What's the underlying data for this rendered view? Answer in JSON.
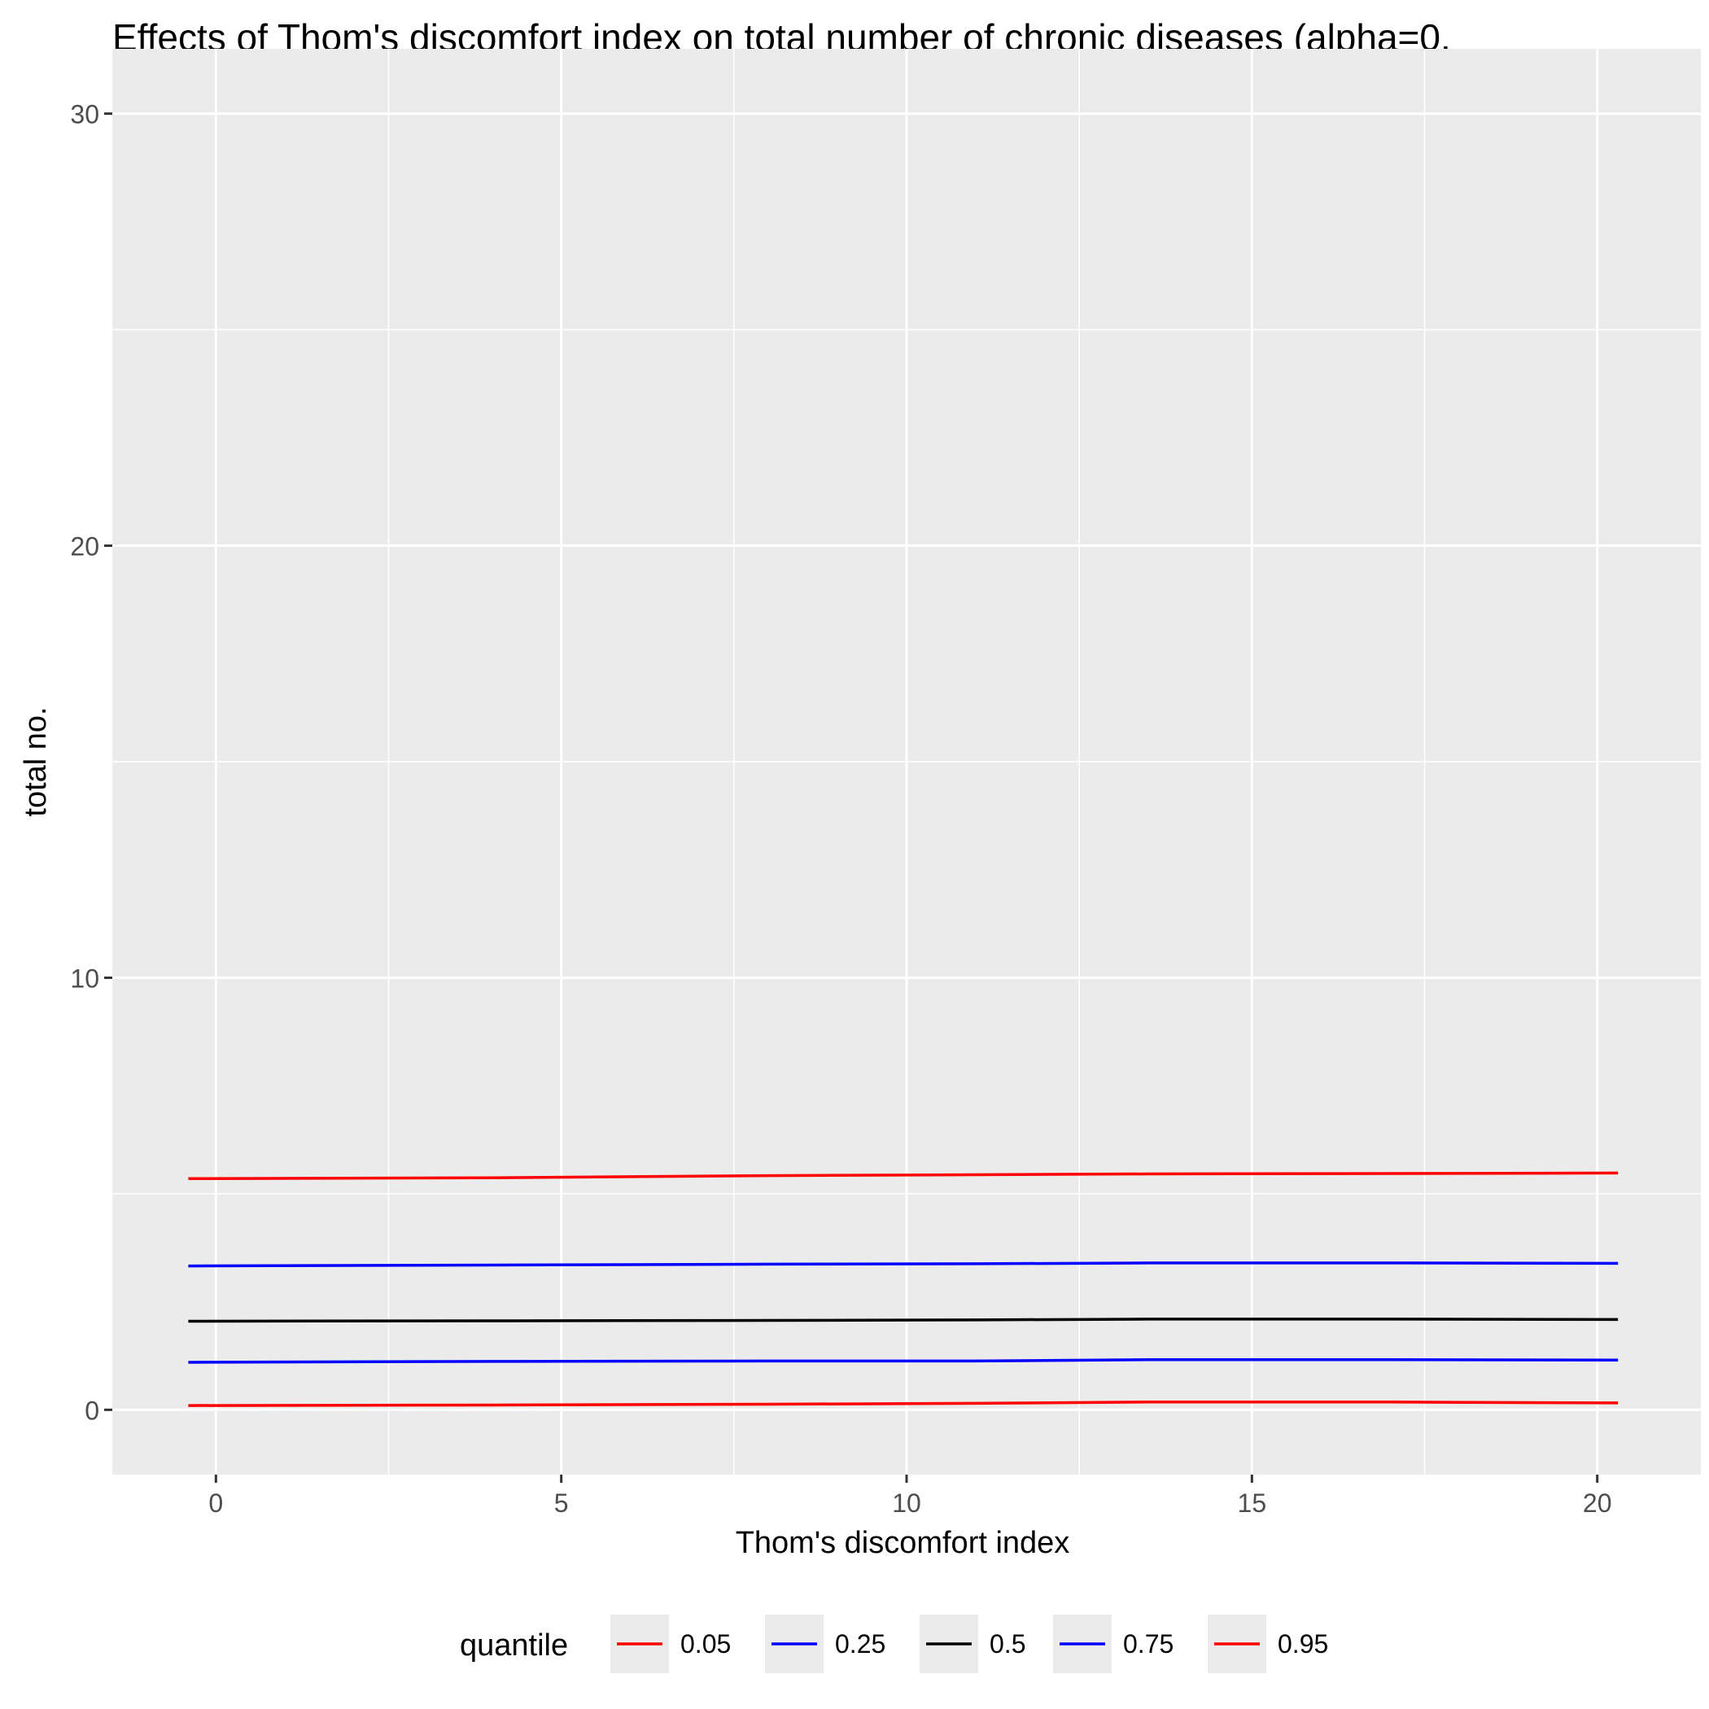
{
  "chart_data": {
    "type": "line",
    "title": "Effects of Thom's discomfort index on total number of chronic diseases (alpha=0.",
    "xlabel": "Thom's discomfort index",
    "ylabel": "total no.",
    "xlim": [
      -1.5,
      21.5
    ],
    "ylim": [
      -1.5,
      31.5
    ],
    "x_ticks": [
      0,
      5,
      10,
      15,
      20
    ],
    "x_tick_labels": [
      "0",
      "5",
      "10",
      "15",
      "20"
    ],
    "y_ticks": [
      0,
      10,
      20,
      30
    ],
    "y_tick_labels": [
      "0",
      "10",
      "20",
      "30"
    ],
    "grid": true,
    "legend": {
      "title": "quantile",
      "position": "bottom"
    },
    "x": [
      -0.4,
      4,
      8,
      11,
      13.5,
      17,
      20.3
    ],
    "series": [
      {
        "name": "0.05",
        "color": "#ff0000",
        "values": [
          0.1,
          0.11,
          0.13,
          0.15,
          0.18,
          0.18,
          0.16
        ]
      },
      {
        "name": "0.25",
        "color": "#0000ff",
        "values": [
          1.1,
          1.12,
          1.13,
          1.13,
          1.16,
          1.16,
          1.15
        ]
      },
      {
        "name": "0.5",
        "color": "#000000",
        "values": [
          2.05,
          2.06,
          2.07,
          2.08,
          2.1,
          2.1,
          2.09
        ]
      },
      {
        "name": "0.75",
        "color": "#0000ff",
        "values": [
          3.33,
          3.35,
          3.37,
          3.38,
          3.4,
          3.4,
          3.39
        ]
      },
      {
        "name": "0.95",
        "color": "#ff0000",
        "values": [
          5.35,
          5.37,
          5.42,
          5.44,
          5.46,
          5.47,
          5.48
        ]
      }
    ]
  }
}
